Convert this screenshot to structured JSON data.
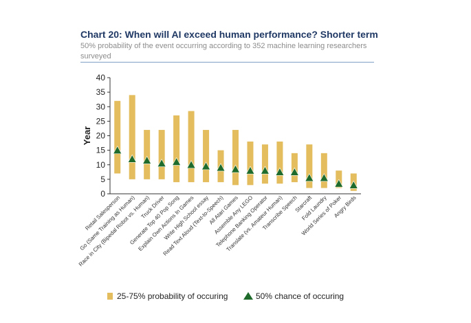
{
  "title": "Chart 20: When will AI exceed human performance? Shorter term",
  "subtitle": "50% probability of the event occurring according to 352 machine learning researchers surveyed",
  "colors": {
    "bar": "#e3bd5e",
    "marker": "#1e6b2c",
    "title": "#1f3864"
  },
  "chart_data": {
    "type": "bar",
    "ylabel": "Year",
    "ylim": [
      0,
      40
    ],
    "yticks": [
      0,
      5,
      10,
      15,
      20,
      25,
      30,
      35,
      40
    ],
    "categories": [
      "Retail Salesperson",
      "Go (Same Training as Human)",
      "Race in City (Bipedal Robot vs. Human)",
      "Truck Driver",
      "Generate Top 40 Pop Song",
      "Explain Own Actions In Games",
      "Write High School essay",
      "Read Text Aloud (Text-to-Speech)",
      "All Atari Games",
      "Assemble Any LEGO",
      "Telephone Banking Operator",
      "Translate (vs. Amateur Human)",
      "Transcribe Speech",
      "Starcraft",
      "Fold Laundry",
      "World Series of Poker",
      "Angry Birds"
    ],
    "series": [
      {
        "name": "25-75% probability of occuring",
        "low": [
          7,
          5,
          5,
          5,
          4,
          4,
          4,
          4,
          3,
          3,
          3.5,
          3.5,
          4,
          2,
          2,
          2,
          1
        ],
        "high": [
          32,
          34,
          22,
          22,
          27,
          28.5,
          22,
          15,
          22,
          18,
          17,
          18,
          14,
          17,
          14,
          8,
          7
        ]
      },
      {
        "name": "50% chance of occuring",
        "values": [
          15,
          12,
          11.5,
          10.5,
          11,
          10,
          9.5,
          9,
          8.5,
          8,
          8,
          7.5,
          7.5,
          5.5,
          5.5,
          3.5,
          3
        ]
      }
    ]
  }
}
